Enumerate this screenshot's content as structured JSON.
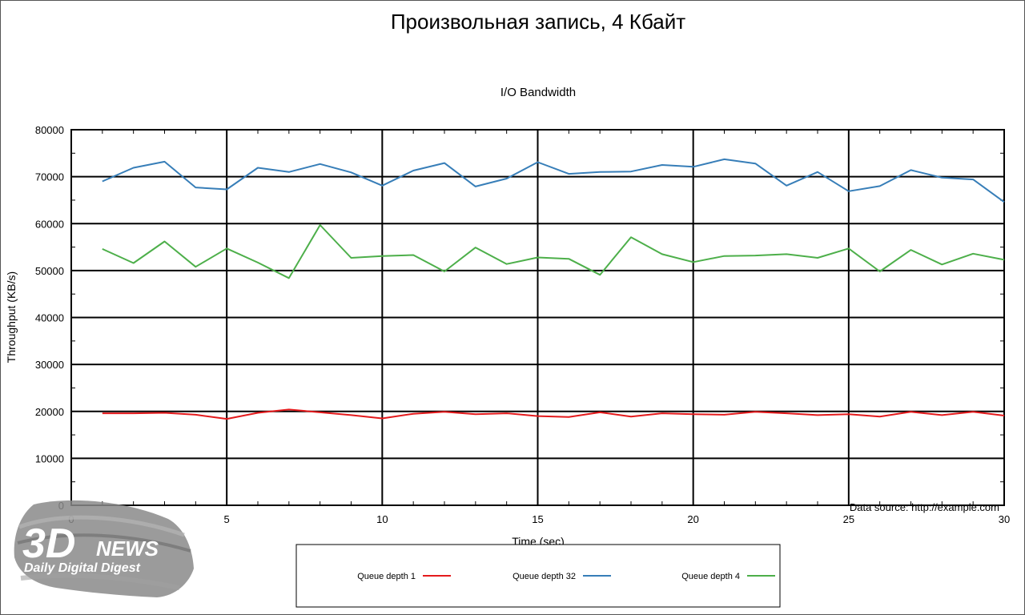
{
  "page_title": "Произвольная запись, 4 Кбайт",
  "chart_data": {
    "type": "line",
    "title": "I/O Bandwidth",
    "xlabel": "Time (sec)",
    "ylabel": "Throughput (KB/s)",
    "xlim": [
      0,
      30
    ],
    "ylim": [
      0,
      80000
    ],
    "x_ticks": [
      0,
      5,
      10,
      15,
      20,
      25,
      30
    ],
    "y_ticks": [
      0,
      10000,
      20000,
      30000,
      40000,
      50000,
      60000,
      70000,
      80000
    ],
    "grid": true,
    "legend_position": "bottom",
    "annotation": "Data source: http://example.com",
    "x": [
      1,
      2,
      3,
      4,
      5,
      6,
      7,
      8,
      9,
      10,
      11,
      12,
      13,
      14,
      15,
      16,
      17,
      18,
      19,
      20,
      21,
      22,
      23,
      24,
      25,
      26,
      27,
      28,
      29,
      30
    ],
    "series": [
      {
        "name": "Queue depth 1",
        "color": "#e41a1c",
        "values": [
          19600,
          19600,
          19700,
          19300,
          18400,
          19700,
          20400,
          19800,
          19200,
          18500,
          19500,
          19900,
          19400,
          19600,
          19000,
          18800,
          19800,
          18900,
          19600,
          19400,
          19300,
          19900,
          19600,
          19200,
          19400,
          18900,
          19900,
          19200,
          19900,
          19100
        ]
      },
      {
        "name": "Queue depth 32",
        "color": "#377eb8",
        "values": [
          69000,
          71900,
          73200,
          67700,
          67300,
          71900,
          71000,
          72700,
          70900,
          68100,
          71300,
          72900,
          67900,
          69600,
          73100,
          70600,
          71000,
          71100,
          72500,
          72100,
          73700,
          72800,
          68100,
          71000,
          66900,
          68000,
          71400,
          69800,
          69400,
          64600
        ]
      },
      {
        "name": "Queue depth 4",
        "color": "#4daf4a",
        "values": [
          54600,
          51600,
          56200,
          50800,
          54700,
          51700,
          48400,
          59700,
          52700,
          53100,
          53300,
          49800,
          54900,
          51400,
          52800,
          52500,
          49100,
          57100,
          53500,
          51800,
          53100,
          53200,
          53500,
          52700,
          54700,
          49800,
          54400,
          51300,
          53600,
          52300
        ]
      }
    ]
  },
  "logo": {
    "brand_big": "3D",
    "brand_word": "NEWS",
    "tagline": "Daily Digital Digest",
    "colors": {
      "brush": "#8a8a8a",
      "text": "#ffffff"
    }
  }
}
